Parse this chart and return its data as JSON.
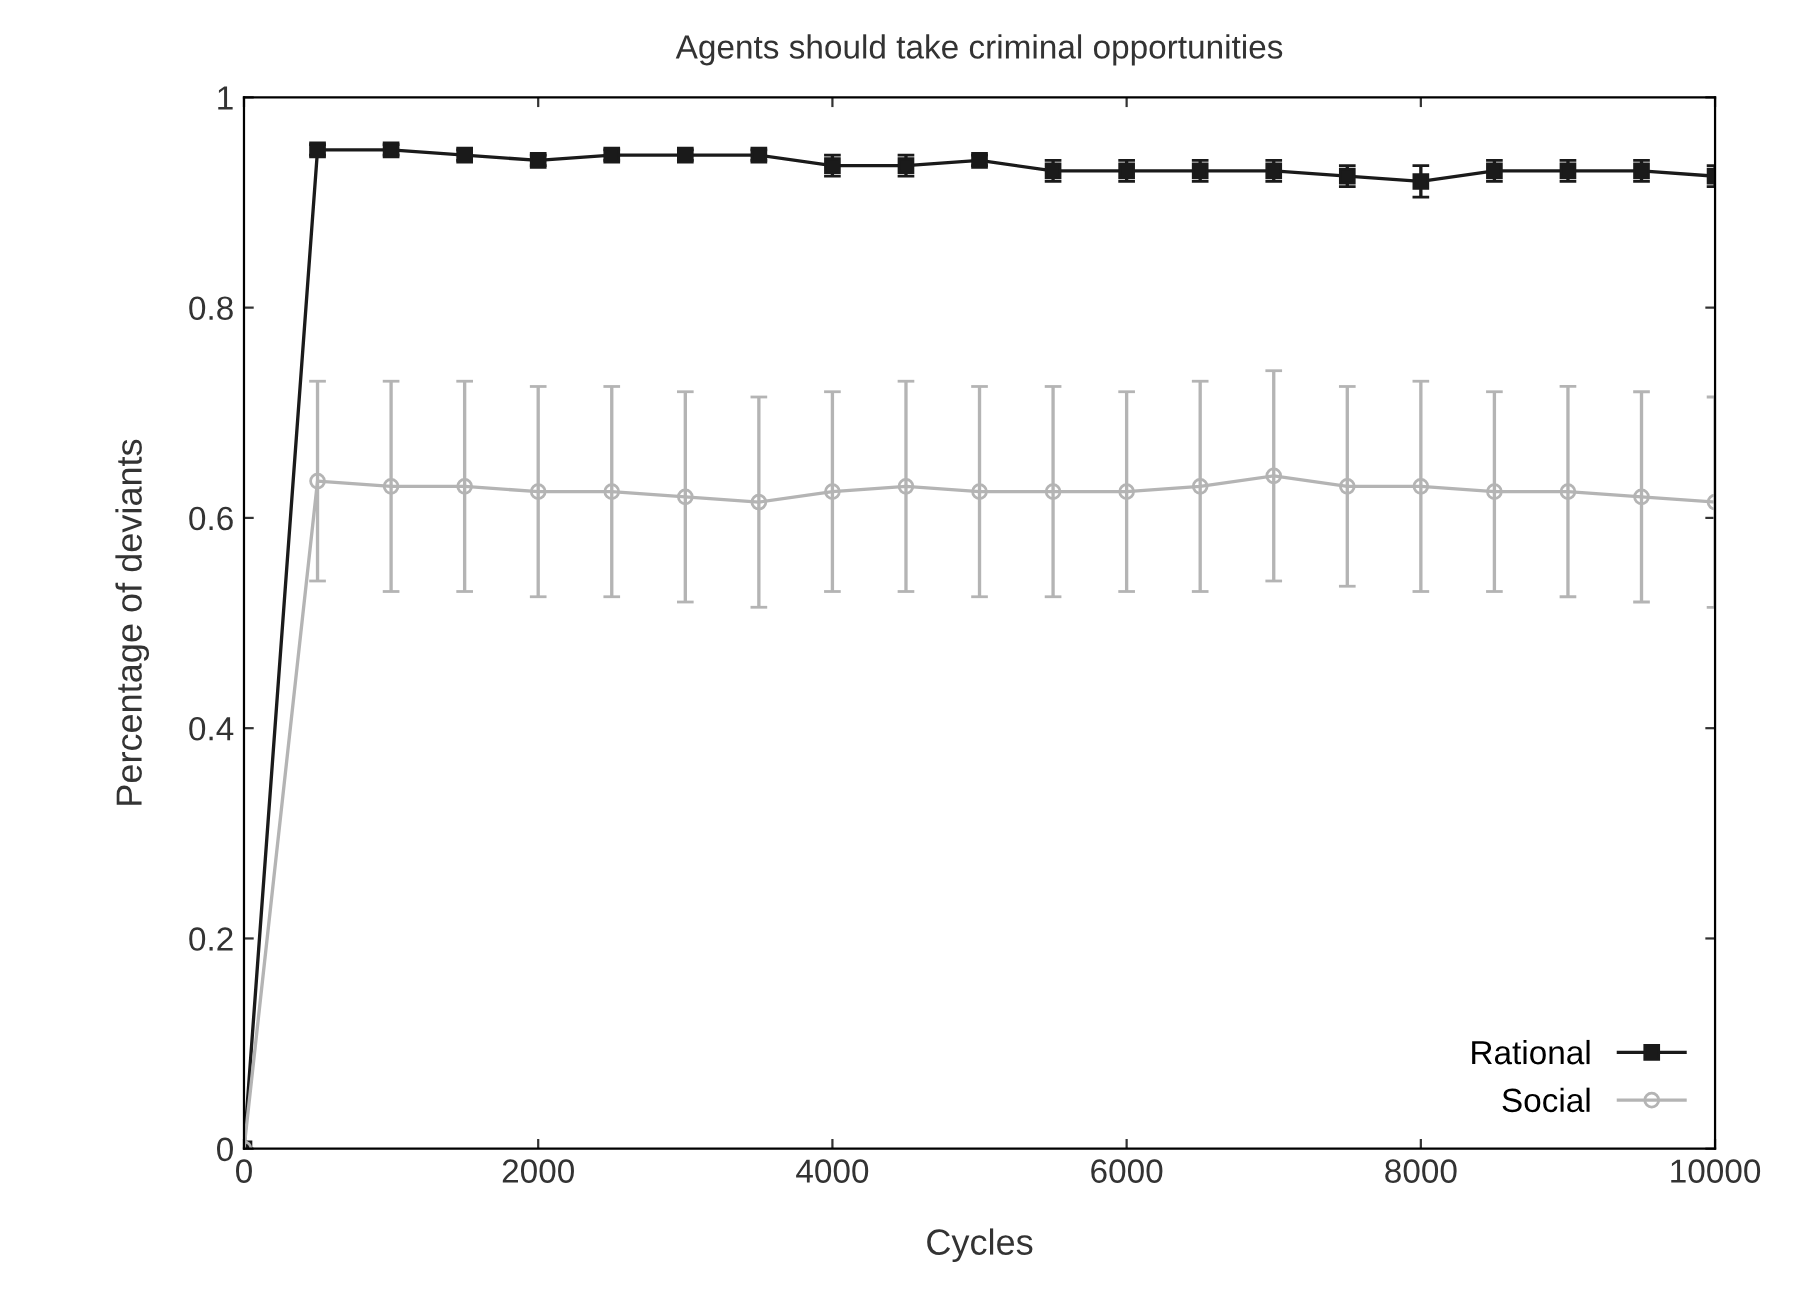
{
  "chart_data": {
    "type": "line",
    "title": "Agents should take criminal opportunities",
    "xlabel": "Cycles",
    "ylabel": "Percentage of deviants",
    "x": [
      0,
      500,
      1000,
      1500,
      2000,
      2500,
      3000,
      3500,
      4000,
      4500,
      5000,
      5500,
      6000,
      6500,
      7000,
      7500,
      8000,
      8500,
      9000,
      9500,
      10000
    ],
    "series": [
      {
        "name": "Rational",
        "color": "#1a1a1a",
        "marker": "square",
        "values": [
          0,
          0.95,
          0.95,
          0.945,
          0.94,
          0.945,
          0.945,
          0.945,
          0.935,
          0.935,
          0.94,
          0.93,
          0.93,
          0.93,
          0.93,
          0.925,
          0.92,
          0.93,
          0.93,
          0.93,
          0.925
        ],
        "errors": [
          null,
          0.005,
          0.005,
          0.005,
          0.005,
          0.005,
          0.005,
          0.005,
          0.01,
          0.01,
          0.005,
          0.01,
          0.01,
          0.01,
          0.01,
          0.01,
          0.015,
          0.01,
          0.01,
          0.01,
          0.01
        ]
      },
      {
        "name": "Social",
        "color": "#b4b4b4",
        "marker": "circle",
        "values": [
          0,
          0.635,
          0.63,
          0.63,
          0.625,
          0.625,
          0.62,
          0.615,
          0.625,
          0.63,
          0.625,
          0.625,
          0.625,
          0.63,
          0.64,
          0.63,
          0.63,
          0.625,
          0.625,
          0.62,
          0.615
        ],
        "errors": [
          null,
          0.095,
          0.1,
          0.1,
          0.1,
          0.1,
          0.1,
          0.1,
          0.095,
          0.1,
          0.1,
          0.1,
          0.095,
          0.1,
          0.1,
          0.095,
          0.1,
          0.095,
          0.1,
          0.1,
          0.1
        ]
      }
    ],
    "xlim": [
      0,
      10000
    ],
    "xticks": [
      0,
      2000,
      4000,
      6000,
      8000,
      10000
    ],
    "ylim": [
      0,
      1
    ],
    "yticks": [
      0,
      0.2,
      0.4,
      0.6,
      0.8,
      1
    ],
    "grid": false,
    "legend": "bottom right",
    "line_style": "solid"
  }
}
